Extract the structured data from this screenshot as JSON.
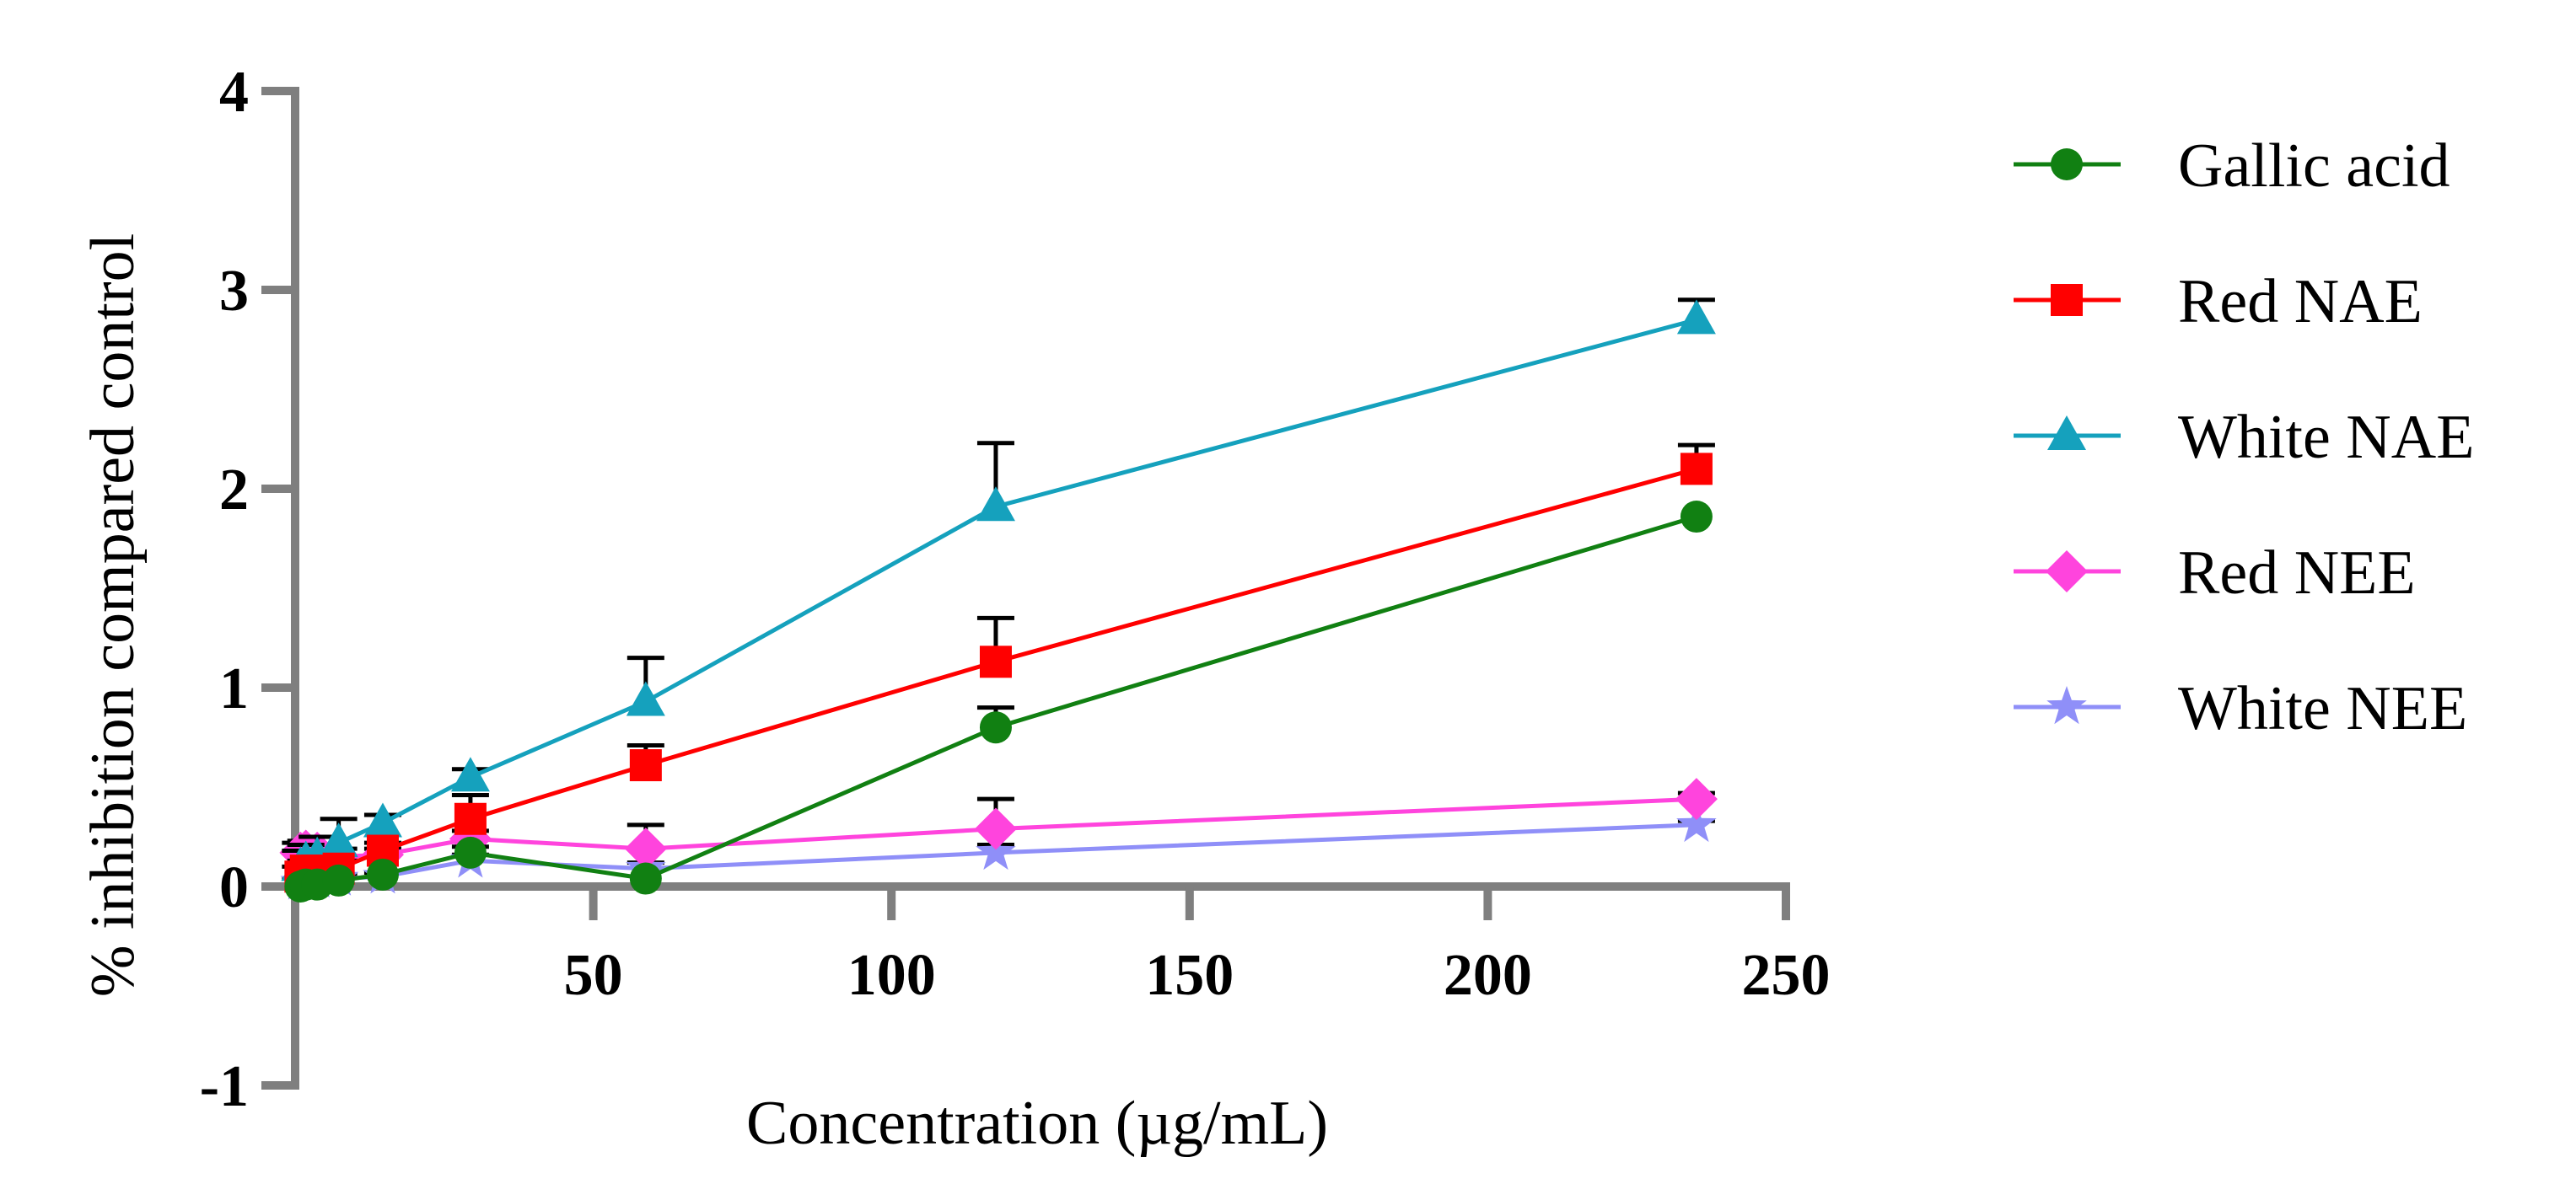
{
  "chart_data": {
    "type": "line",
    "title": "",
    "xlabel": "Concentration (µg/mL)",
    "ylabel": "% inhibition compared control",
    "xlim": [
      0,
      250
    ],
    "ylim": [
      -1,
      4
    ],
    "xticks": [
      50,
      100,
      150,
      200,
      250
    ],
    "yticks": [
      -1,
      0,
      1,
      2,
      3,
      4
    ],
    "grid": false,
    "legend_position": "right",
    "series": [
      {
        "name": "Gallic acid",
        "color": "#118012",
        "marker": "circle",
        "x": [
          0.9,
          1.8,
          3.7,
          7.3,
          14.7,
          29.4,
          58.8,
          117.5,
          235
        ],
        "y": [
          0.0,
          0.01,
          0.01,
          0.03,
          0.06,
          0.17,
          0.04,
          0.8,
          1.86
        ],
        "err": [
          0.0,
          0.0,
          0.0,
          0.0,
          0.0,
          0.03,
          0.0,
          0.1,
          0.0
        ]
      },
      {
        "name": "Red NAE",
        "color": "#ff0000",
        "marker": "square",
        "x": [
          0.9,
          1.8,
          3.7,
          7.3,
          14.7,
          29.4,
          58.8,
          117.5,
          235
        ],
        "y": [
          0.05,
          0.08,
          0.08,
          0.09,
          0.18,
          0.34,
          0.61,
          1.13,
          2.1
        ],
        "err": [
          0.05,
          0.05,
          0.05,
          0.04,
          0.04,
          0.12,
          0.1,
          0.22,
          0.12
        ]
      },
      {
        "name": "White NAE",
        "color": "#15a1bd",
        "marker": "triangle",
        "x": [
          0.9,
          1.8,
          3.7,
          7.3,
          14.7,
          29.4,
          58.8,
          117.5,
          235
        ],
        "y": [
          0.1,
          0.13,
          0.15,
          0.22,
          0.32,
          0.55,
          0.93,
          1.91,
          2.85
        ],
        "err": [
          0.08,
          0.08,
          0.1,
          0.12,
          0.04,
          0.04,
          0.22,
          0.32,
          0.1
        ]
      },
      {
        "name": "Red NEE",
        "color": "#ff44dd",
        "marker": "diamond",
        "x": [
          0.9,
          1.8,
          3.7,
          7.3,
          14.7,
          29.4,
          58.8,
          117.5,
          235
        ],
        "y": [
          0.17,
          0.18,
          0.17,
          0.15,
          0.16,
          0.24,
          0.19,
          0.29,
          0.44
        ],
        "err": [
          0.05,
          0.05,
          0.04,
          0.04,
          0.03,
          0.04,
          0.12,
          0.15,
          0.03
        ]
      },
      {
        "name": "White NEE",
        "color": "#8f8ff8",
        "marker": "star",
        "x": [
          0.9,
          1.8,
          3.7,
          7.3,
          14.7,
          29.4,
          58.8,
          117.5,
          235
        ],
        "y": [
          0.02,
          0.02,
          0.03,
          0.04,
          0.05,
          0.13,
          0.09,
          0.17,
          0.31
        ],
        "err": [
          0.02,
          0.02,
          0.02,
          0.02,
          0.02,
          0.03,
          0.03,
          0.04,
          0.02
        ]
      }
    ]
  }
}
